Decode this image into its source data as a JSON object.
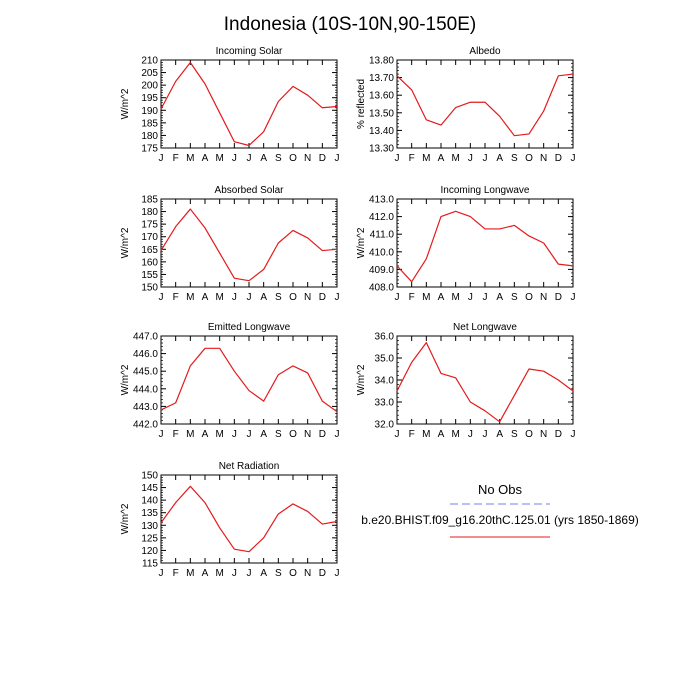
{
  "figure": {
    "title": "Indonesia (10S-10N,90-150E)"
  },
  "months": [
    "J",
    "F",
    "M",
    "A",
    "M",
    "J",
    "J",
    "A",
    "S",
    "O",
    "N",
    "D",
    "J"
  ],
  "colors": {
    "model": "#e41a1c",
    "obs": "#7b7bf0",
    "axis": "#000000"
  },
  "chart_data": [
    {
      "type": "line",
      "title": "Incoming Solar",
      "ylabel": "W/m^2",
      "ylim": [
        175,
        210
      ],
      "yticks": [
        175,
        180,
        185,
        190,
        195,
        200,
        205,
        210
      ],
      "ytick_labels": [
        "175",
        "180",
        "185",
        "190",
        "195",
        "200",
        "205",
        "210"
      ],
      "yminor": 1,
      "x": [
        "J",
        "F",
        "M",
        "A",
        "M",
        "J",
        "J",
        "A",
        "S",
        "O",
        "N",
        "D",
        "J"
      ],
      "series": [
        {
          "values": [
            190.5,
            201.5,
            209,
            200.5,
            189,
            177.5,
            176,
            181.5,
            193.5,
            199.5,
            196,
            191,
            191.5
          ]
        }
      ]
    },
    {
      "type": "line",
      "title": "Albedo",
      "ylabel": "% reflected",
      "ylim": [
        13.3,
        13.8
      ],
      "yticks": [
        13.3,
        13.4,
        13.5,
        13.6,
        13.7,
        13.8
      ],
      "ytick_labels": [
        "13.30",
        "13.40",
        "13.50",
        "13.60",
        "13.70",
        "13.80"
      ],
      "yminor": 0.02,
      "x": [
        "J",
        "F",
        "M",
        "A",
        "M",
        "J",
        "J",
        "A",
        "S",
        "O",
        "N",
        "D",
        "J"
      ],
      "series": [
        {
          "values": [
            13.71,
            13.63,
            13.46,
            13.43,
            13.53,
            13.56,
            13.56,
            13.48,
            13.37,
            13.38,
            13.51,
            13.71,
            13.72
          ]
        }
      ]
    },
    {
      "type": "line",
      "title": "Absorbed Solar",
      "ylabel": "W/m^2",
      "ylim": [
        150,
        185
      ],
      "yticks": [
        150,
        155,
        160,
        165,
        170,
        175,
        180,
        185
      ],
      "ytick_labels": [
        "150",
        "155",
        "160",
        "165",
        "170",
        "175",
        "180",
        "185"
      ],
      "yminor": 1,
      "x": [
        "J",
        "F",
        "M",
        "A",
        "M",
        "J",
        "J",
        "A",
        "S",
        "O",
        "N",
        "D",
        "J"
      ],
      "series": [
        {
          "values": [
            164.5,
            174,
            181,
            173.5,
            163.5,
            153.5,
            152.5,
            157,
            167.5,
            172.5,
            169.5,
            164.5,
            165
          ]
        }
      ]
    },
    {
      "type": "line",
      "title": "Incoming Longwave",
      "ylabel": "W/m^2",
      "ylim": [
        408,
        413
      ],
      "yticks": [
        408,
        409,
        410,
        411,
        412,
        413
      ],
      "ytick_labels": [
        "408.0",
        "409.0",
        "410.0",
        "411.0",
        "412.0",
        "413.0"
      ],
      "yminor": 0.2,
      "x": [
        "J",
        "F",
        "M",
        "A",
        "M",
        "J",
        "J",
        "A",
        "S",
        "O",
        "N",
        "D",
        "J"
      ],
      "series": [
        {
          "values": [
            409.2,
            408.3,
            409.6,
            412.0,
            412.3,
            412.0,
            411.3,
            411.3,
            411.5,
            410.9,
            410.5,
            409.3,
            409.2
          ]
        }
      ]
    },
    {
      "type": "line",
      "title": "Emitted Longwave",
      "ylabel": "W/m^2",
      "ylim": [
        442,
        447
      ],
      "yticks": [
        442,
        443,
        444,
        445,
        446,
        447
      ],
      "ytick_labels": [
        "442.0",
        "443.0",
        "444.0",
        "445.0",
        "446.0",
        "447.0"
      ],
      "yminor": 0.2,
      "x": [
        "J",
        "F",
        "M",
        "A",
        "M",
        "J",
        "J",
        "A",
        "S",
        "O",
        "N",
        "D",
        "J"
      ],
      "series": [
        {
          "values": [
            442.8,
            443.2,
            445.3,
            446.3,
            446.3,
            445.0,
            443.9,
            443.3,
            444.8,
            445.3,
            444.9,
            443.3,
            442.7
          ]
        }
      ]
    },
    {
      "type": "line",
      "title": "Net Longwave",
      "ylabel": "W/m^2",
      "ylim": [
        32,
        36
      ],
      "yticks": [
        32,
        33,
        34,
        35,
        36
      ],
      "ytick_labels": [
        "32.0",
        "33.0",
        "34.0",
        "35.0",
        "36.0"
      ],
      "yminor": 0.2,
      "x": [
        "J",
        "F",
        "M",
        "A",
        "M",
        "J",
        "J",
        "A",
        "S",
        "O",
        "N",
        "D",
        "J"
      ],
      "series": [
        {
          "values": [
            33.5,
            34.8,
            35.7,
            34.3,
            34.1,
            33.0,
            32.6,
            32.1,
            33.3,
            34.5,
            34.4,
            34.0,
            33.5
          ]
        }
      ]
    },
    {
      "type": "line",
      "title": "Net Radiation",
      "ylabel": "W/m^2",
      "ylim": [
        115,
        150
      ],
      "yticks": [
        115,
        120,
        125,
        130,
        135,
        140,
        145,
        150
      ],
      "ytick_labels": [
        "115",
        "120",
        "125",
        "130",
        "135",
        "140",
        "145",
        "150"
      ],
      "yminor": 1,
      "x": [
        "J",
        "F",
        "M",
        "A",
        "M",
        "J",
        "J",
        "A",
        "S",
        "O",
        "N",
        "D",
        "J"
      ],
      "series": [
        {
          "values": [
            131,
            139,
            145.5,
            139,
            129,
            120.5,
            119.5,
            125,
            134.5,
            138.5,
            135.5,
            130.5,
            131.5
          ]
        }
      ]
    }
  ],
  "legend": {
    "obs_label": "No Obs",
    "model_label": "b.e20.BHIST.f09_g16.20thC.125.01 (yrs 1850-1869)"
  }
}
